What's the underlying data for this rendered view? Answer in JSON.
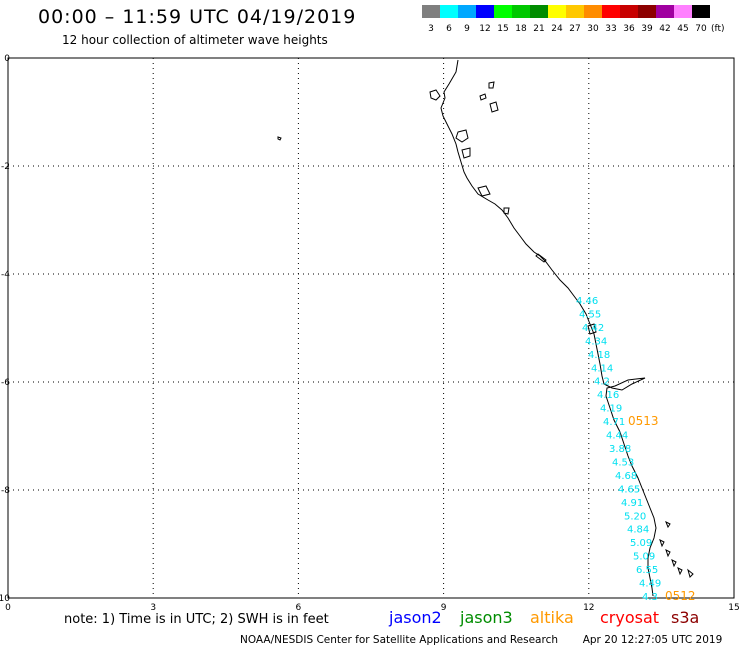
{
  "header": {
    "title": "00:00 – 11:59 UTC 04/19/2019",
    "subtitle": "12 hour collection of altimeter wave heights"
  },
  "legend": {
    "unit": "(ft)",
    "bins": [
      {
        "label": "3",
        "color": "#7f7f7f"
      },
      {
        "label": "6",
        "color": "#00ffff"
      },
      {
        "label": "9",
        "color": "#00a8ff"
      },
      {
        "label": "12",
        "color": "#0000ff"
      },
      {
        "label": "15",
        "color": "#00ff00"
      },
      {
        "label": "18",
        "color": "#00c800"
      },
      {
        "label": "21",
        "color": "#008c00"
      },
      {
        "label": "24",
        "color": "#ffff00"
      },
      {
        "label": "27",
        "color": "#ffc800"
      },
      {
        "label": "30",
        "color": "#ff8c00"
      },
      {
        "label": "33",
        "color": "#ff0000"
      },
      {
        "label": "36",
        "color": "#c80000"
      },
      {
        "label": "39",
        "color": "#8c0000"
      },
      {
        "label": "42",
        "color": "#a000a0"
      },
      {
        "label": "45",
        "color": "#ff80ff"
      },
      {
        "label": "70",
        "color": "#000000"
      }
    ]
  },
  "map": {
    "x_ticks": [
      "0",
      "3",
      "6",
      "9",
      "12",
      "15"
    ],
    "y_ticks": [
      "0",
      "-2",
      "-4",
      "-6",
      "-8",
      "-10"
    ],
    "grid": true,
    "wave_color": "#00e0f0",
    "time_color": "#ff9900",
    "wave_heights": [
      "4.46",
      "4.55",
      "4.42",
      "4.34",
      "4.18",
      "4.14",
      "4.2",
      "4.16",
      "4.19",
      "4.71",
      "4.44",
      "3.88",
      "4.53",
      "4.68",
      "4.65",
      "4.91",
      "5.20",
      "4.84",
      "5.09",
      "5.09",
      "6.55",
      "4.49",
      "4.3"
    ],
    "time_labels": [
      "0513",
      "0512"
    ]
  },
  "satellites": [
    {
      "name": "jason2",
      "color": "#0000ff"
    },
    {
      "name": "jason3",
      "color": "#008c00"
    },
    {
      "name": "altika",
      "color": "#ff9900"
    },
    {
      "name": "cryosat",
      "color": "#ff0000"
    },
    {
      "name": "s3a",
      "color": "#8c0000"
    }
  ],
  "note": "note: 1) Time is in UTC; 2) SWH is in feet",
  "footer": {
    "credit": "NOAA/NESDIS Center for Satellite Applications and Research",
    "timestamp": "Apr 20 12:27:05 UTC 2019"
  }
}
